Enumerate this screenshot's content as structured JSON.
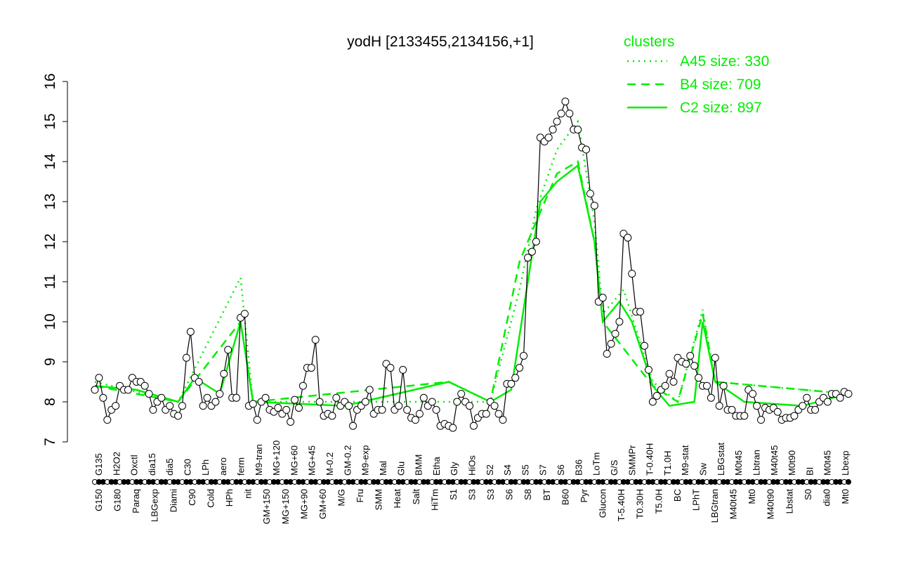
{
  "chart_data": {
    "type": "line",
    "title": "yodH [2133455,2134156,+1]",
    "xlabel": "",
    "ylabel": "",
    "ylim": [
      7,
      16
    ],
    "yticks": [
      7,
      8,
      9,
      10,
      11,
      12,
      13,
      14,
      15,
      16
    ],
    "grid": false,
    "legend": {
      "title": "clusters",
      "placement": "top-right",
      "entries": [
        {
          "label": "A45 size: 330",
          "style": "dotted"
        },
        {
          "label": "B4 size: 709",
          "style": "dashed"
        },
        {
          "label": "C2 size: 897",
          "style": "solid"
        }
      ]
    },
    "colors": {
      "main": "#000000",
      "cluster": "#00ee00"
    },
    "values": [
      8.3,
      8.6,
      8.1,
      7.55,
      7.8,
      7.9,
      8.4,
      8.3,
      8.3,
      8.6,
      8.5,
      8.5,
      8.4,
      8.2,
      7.8,
      8.0,
      8.1,
      7.8,
      7.9,
      7.7,
      7.65,
      7.9,
      9.1,
      9.75,
      8.6,
      8.5,
      7.9,
      8.1,
      7.9,
      8.0,
      8.2,
      8.7,
      9.3,
      8.1,
      8.1,
      10.1,
      10.2,
      7.9,
      7.95,
      7.55,
      8.0,
      8.1,
      7.8,
      7.75,
      7.85,
      7.7,
      7.8,
      7.5,
      8.05,
      7.85,
      8.4,
      8.85,
      8.85,
      9.55,
      8.0,
      7.65,
      7.7,
      7.65,
      8.1,
      7.9,
      8.0,
      7.9,
      7.4,
      7.8,
      7.9,
      8.0,
      8.3,
      7.7,
      7.8,
      7.8,
      8.95,
      8.85,
      7.8,
      7.9,
      8.8,
      7.8,
      7.6,
      7.55,
      7.7,
      8.1,
      7.9,
      8.0,
      7.8,
      7.4,
      7.45,
      7.4,
      7.35,
      8.0,
      8.2,
      8.0,
      7.9,
      7.4,
      7.6,
      7.7,
      7.7,
      8.0,
      7.9,
      7.7,
      7.55,
      8.45,
      8.45,
      8.6,
      8.85,
      9.15,
      11.6,
      11.75,
      12.0,
      14.6,
      14.5,
      14.6,
      14.8,
      15.0,
      15.2,
      15.5,
      15.2,
      14.8,
      14.8,
      14.35,
      14.3,
      13.2,
      12.9,
      10.5,
      10.6,
      9.2,
      9.45,
      9.7,
      10.0,
      12.2,
      12.1,
      11.2,
      10.25,
      10.25,
      9.4,
      8.8,
      8.0,
      8.15,
      8.3,
      8.4,
      8.7,
      8.5,
      9.1,
      9.0,
      8.95,
      9.15,
      8.9,
      8.6,
      8.4,
      8.4,
      8.1,
      9.1,
      7.9,
      8.4,
      7.8,
      7.8,
      7.65,
      7.65,
      7.65,
      8.3,
      8.2,
      7.9,
      7.55,
      7.85,
      7.8,
      7.85,
      7.75,
      7.55,
      7.6,
      7.6,
      7.65,
      7.8,
      7.9,
      8.1,
      7.8,
      7.8,
      8.0,
      8.1,
      8.0,
      8.2,
      8.2,
      8.1,
      8.25,
      8.2
    ],
    "series": [
      {
        "name": "A45 size: 330",
        "style": "dotted",
        "points": [
          [
            0,
            8.5
          ],
          [
            20,
            8.0
          ],
          [
            35,
            11.1
          ],
          [
            38,
            8.0
          ],
          [
            95,
            8.0
          ],
          [
            102,
            10.8
          ],
          [
            106,
            12.8
          ],
          [
            111,
            14.3
          ],
          [
            116,
            15.0
          ],
          [
            120,
            12.5
          ],
          [
            122,
            10.2
          ],
          [
            127,
            10.8
          ],
          [
            134,
            8.5
          ],
          [
            140,
            8.0
          ],
          [
            146,
            10.3
          ],
          [
            149,
            8.5
          ],
          [
            181,
            8.2
          ]
        ]
      },
      {
        "name": "B4 size: 709",
        "style": "dashed",
        "points": [
          [
            0,
            8.4
          ],
          [
            20,
            8.0
          ],
          [
            35,
            10.0
          ],
          [
            38,
            8.0
          ],
          [
            85,
            8.5
          ],
          [
            95,
            8.0
          ],
          [
            102,
            11.5
          ],
          [
            106,
            12.5
          ],
          [
            111,
            13.7
          ],
          [
            116,
            14.0
          ],
          [
            120,
            12.0
          ],
          [
            122,
            10.0
          ],
          [
            134,
            8.4
          ],
          [
            140,
            8.0
          ],
          [
            146,
            10.2
          ],
          [
            149,
            8.5
          ],
          [
            181,
            8.2
          ]
        ]
      },
      {
        "name": "C2 size: 897",
        "style": "solid",
        "points": [
          [
            0,
            8.4
          ],
          [
            10,
            8.3
          ],
          [
            20,
            8.0
          ],
          [
            24,
            8.6
          ],
          [
            30,
            8.2
          ],
          [
            35,
            10.0
          ],
          [
            38,
            8.0
          ],
          [
            60,
            7.9
          ],
          [
            85,
            8.5
          ],
          [
            95,
            8.0
          ],
          [
            100,
            8.3
          ],
          [
            104,
            11.0
          ],
          [
            107,
            13.0
          ],
          [
            111,
            13.5
          ],
          [
            116,
            13.9
          ],
          [
            120,
            12.0
          ],
          [
            122,
            10.0
          ],
          [
            126,
            10.5
          ],
          [
            129,
            10.0
          ],
          [
            134,
            8.4
          ],
          [
            138,
            7.9
          ],
          [
            144,
            8.0
          ],
          [
            146,
            10.0
          ],
          [
            149,
            8.5
          ],
          [
            156,
            8.0
          ],
          [
            170,
            7.9
          ],
          [
            181,
            8.2
          ]
        ]
      }
    ],
    "xtick_labels_top": [
      "G135",
      "H2O2",
      "Oxctl",
      "dia15",
      "dia5",
      "C30",
      "LPh",
      "aero",
      "ferm",
      "M9-tran",
      "MG+120",
      "MG+60",
      "MG+45",
      "M-0.2",
      "GM-0.2",
      "M9-exp",
      "Mal",
      "Glu",
      "BMM",
      "Etha",
      "Gly",
      "HiOs",
      "S2",
      "S4",
      "S5",
      "S7",
      "S6",
      "B36",
      "LoTm",
      "G/S",
      "SMMPr",
      "T-0.40H",
      "T1.0H",
      "M9-stat",
      "Sw",
      "LBGstat",
      "M0t45",
      "Lbtran",
      "M40t45",
      "M0t90",
      "BI",
      "M0t45",
      "Lbexp"
    ],
    "xtick_labels_bottom": [
      "G150",
      "G180",
      "Paraq",
      "LBGexp",
      "Diami",
      "C90",
      "Cold",
      "HPh",
      "nit",
      "GM+150",
      "MG+150",
      "MG+90",
      "GM+60",
      "M/G",
      "Fru",
      "SMM",
      "Heat",
      "Salt",
      "HiTm",
      "S1",
      "S3",
      "S3",
      "S6",
      "S8",
      "BT",
      "B60",
      "Pyr",
      "Glucon",
      "T-5.40H",
      "T0.30H",
      "T5.0H",
      "BC",
      "LPhT",
      "LBGtran",
      "M40t45",
      "Mt0",
      "M40t90",
      "Lbstat",
      "S0",
      "dia0",
      "Mt0"
    ]
  }
}
